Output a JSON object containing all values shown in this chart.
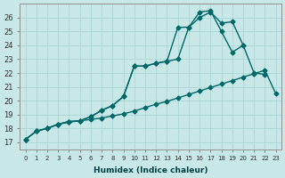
{
  "bg_color": "#c8e8e8",
  "grid_color": "#b0d8d8",
  "line_color": "#006868",
  "xlabel": "Humidex (Indice chaleur)",
  "ylabel_ticks": [
    17,
    18,
    19,
    20,
    21,
    22,
    23,
    24,
    25,
    26
  ],
  "xlim": [
    -0.5,
    23.5
  ],
  "ylim": [
    16.5,
    27.0
  ],
  "line_baseline_x": [
    0,
    1,
    2,
    3,
    4,
    5,
    6,
    7,
    8,
    9,
    10,
    11,
    12,
    13,
    14,
    15,
    16,
    17,
    18,
    19,
    20,
    21,
    22,
    23
  ],
  "line_baseline_y": [
    17.2,
    17.8,
    18.0,
    18.3,
    18.45,
    18.55,
    18.65,
    18.75,
    18.9,
    19.05,
    19.25,
    19.5,
    19.75,
    19.95,
    20.2,
    20.45,
    20.7,
    20.95,
    21.2,
    21.45,
    21.7,
    21.95,
    22.2,
    20.5
  ],
  "line_mid_x": [
    0,
    1,
    2,
    3,
    4,
    5,
    6,
    7,
    8,
    9,
    10,
    11,
    12,
    13,
    14,
    15,
    16,
    17,
    18,
    19,
    20,
    21,
    22
  ],
  "line_mid_y": [
    17.2,
    17.8,
    18.0,
    18.3,
    18.5,
    18.55,
    18.85,
    19.3,
    19.65,
    20.3,
    22.5,
    22.5,
    22.7,
    22.85,
    23.0,
    25.3,
    26.0,
    26.4,
    25.6,
    25.7,
    24.0,
    22.0,
    21.9
  ],
  "line_top_x": [
    0,
    1,
    2,
    3,
    4,
    5,
    6,
    7,
    8,
    9,
    10,
    11,
    12,
    13,
    14,
    15,
    16,
    17,
    18,
    19,
    20
  ],
  "line_top_y": [
    17.2,
    17.8,
    18.0,
    18.3,
    18.5,
    18.55,
    18.85,
    19.3,
    19.65,
    20.3,
    22.5,
    22.5,
    22.7,
    22.85,
    25.3,
    25.3,
    26.4,
    26.5,
    25.0,
    23.5,
    24.0
  ]
}
